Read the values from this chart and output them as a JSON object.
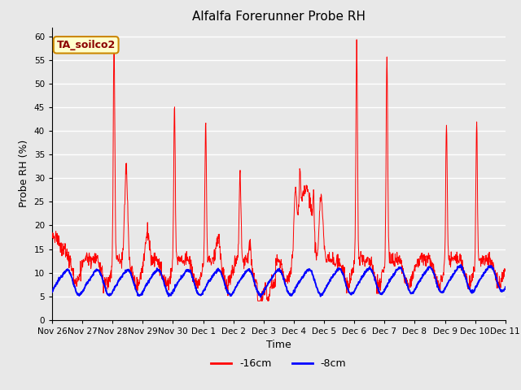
{
  "title": "Alfalfa Forerunner Probe RH",
  "xlabel": "Time",
  "ylabel": "Probe RH (%)",
  "ylim": [
    0,
    62
  ],
  "yticks": [
    0,
    5,
    10,
    15,
    20,
    25,
    30,
    35,
    40,
    45,
    50,
    55,
    60
  ],
  "background_color": "#e8e8e8",
  "plot_bg_color": "#e8e8e8",
  "grid_color": "white",
  "legend_label_16cm": "-16cm",
  "legend_label_8cm": "-8cm",
  "color_16cm": "red",
  "color_8cm": "blue",
  "annotation_text": "TA_soilco2",
  "annotation_bg": "#ffffcc",
  "annotation_border": "#cc8800",
  "title_fontsize": 11,
  "axis_label_fontsize": 9,
  "tick_fontsize": 7.5,
  "legend_fontsize": 9
}
